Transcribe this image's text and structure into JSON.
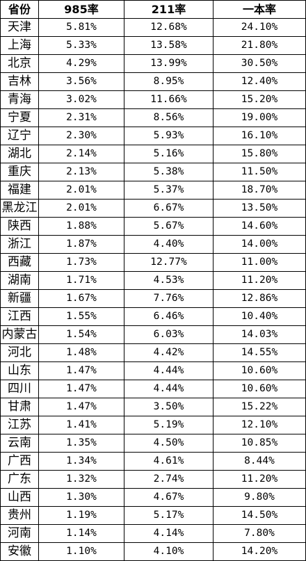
{
  "table": {
    "headers": [
      "省份",
      "985率",
      "211率",
      "一本率"
    ],
    "rows": [
      [
        "天津",
        "5.81%",
        "12.68%",
        "24.10%"
      ],
      [
        "上海",
        "5.33%",
        "13.58%",
        "21.80%"
      ],
      [
        "北京",
        "4.29%",
        "13.99%",
        "30.50%"
      ],
      [
        "吉林",
        "3.56%",
        "8.95%",
        "12.40%"
      ],
      [
        "青海",
        "3.02%",
        "11.66%",
        "15.20%"
      ],
      [
        "宁夏",
        "2.31%",
        "8.56%",
        "19.00%"
      ],
      [
        "辽宁",
        "2.30%",
        "5.93%",
        "16.10%"
      ],
      [
        "湖北",
        "2.14%",
        "5.16%",
        "15.80%"
      ],
      [
        "重庆",
        "2.13%",
        "5.38%",
        "11.50%"
      ],
      [
        "福建",
        "2.01%",
        "5.37%",
        "18.70%"
      ],
      [
        "黑龙江",
        "2.01%",
        "6.67%",
        "13.50%"
      ],
      [
        "陕西",
        "1.88%",
        "5.67%",
        "14.60%"
      ],
      [
        "浙江",
        "1.87%",
        "4.40%",
        "14.00%"
      ],
      [
        "西藏",
        "1.73%",
        "12.77%",
        "11.00%"
      ],
      [
        "湖南",
        "1.71%",
        "4.53%",
        "11.20%"
      ],
      [
        "新疆",
        "1.67%",
        "7.76%",
        "12.86%"
      ],
      [
        "江西",
        "1.55%",
        "6.46%",
        "10.40%"
      ],
      [
        "内蒙古",
        "1.54%",
        "6.03%",
        "14.03%"
      ],
      [
        "河北",
        "1.48%",
        "4.42%",
        "14.55%"
      ],
      [
        "山东",
        "1.47%",
        "4.44%",
        "10.60%"
      ],
      [
        "四川",
        "1.47%",
        "4.44%",
        "10.60%"
      ],
      [
        "甘肃",
        "1.47%",
        "3.50%",
        "15.22%"
      ],
      [
        "江苏",
        "1.41%",
        "5.19%",
        "12.10%"
      ],
      [
        "云南",
        "1.35%",
        "4.50%",
        "10.85%"
      ],
      [
        "广西",
        "1.34%",
        "4.61%",
        "8.44%"
      ],
      [
        "广东",
        "1.32%",
        "2.74%",
        "11.20%"
      ],
      [
        "山西",
        "1.30%",
        "4.67%",
        "9.80%"
      ],
      [
        "贵州",
        "1.19%",
        "5.17%",
        "14.50%"
      ],
      [
        "河南",
        "1.14%",
        "4.14%",
        "7.80%"
      ],
      [
        "安徽",
        "1.10%",
        "4.10%",
        "14.20%"
      ]
    ]
  }
}
